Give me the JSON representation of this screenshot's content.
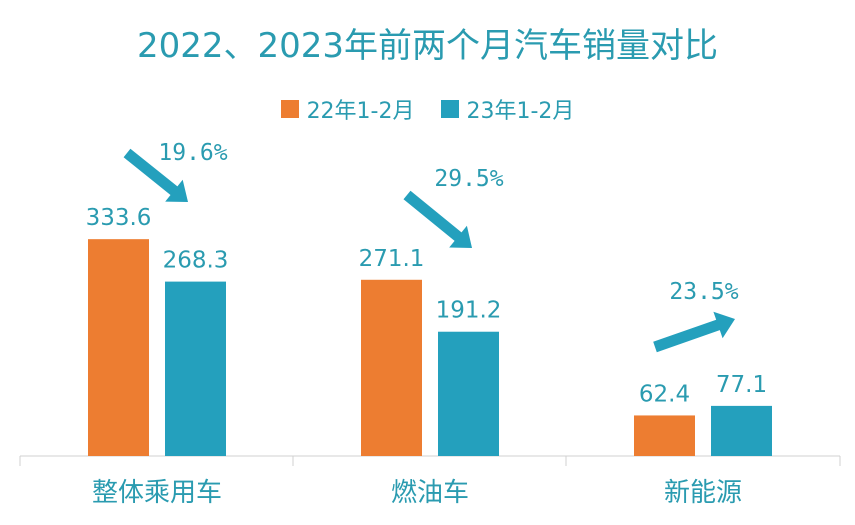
{
  "chart_data": {
    "type": "bar",
    "title": "2022、2023年前两个月汽车销量对比",
    "categories": [
      "整体乘用车",
      "燃油车",
      "新能源"
    ],
    "series": [
      {
        "name": "22年1-2月",
        "values": [
          333.6,
          271.1,
          62.4
        ],
        "color": "#ed7d31"
      },
      {
        "name": "23年1-2月",
        "values": [
          268.3,
          191.2,
          77.1
        ],
        "color": "#24a0bd"
      }
    ],
    "value_labels": [
      [
        "333.6",
        "271.1",
        "62.4"
      ],
      [
        "268.3",
        "191.2",
        "77.1"
      ]
    ],
    "annotations": [
      {
        "category": "整体乘用车",
        "text": "19.6%",
        "direction": "down"
      },
      {
        "category": "燃油车",
        "text": "29.5%",
        "direction": "down"
      },
      {
        "category": "新能源",
        "text": "23.5%",
        "direction": "up"
      }
    ],
    "ylim": [
      0,
      400
    ],
    "grid": false,
    "legend_position": "top-center",
    "xlabel": "",
    "ylabel": ""
  }
}
